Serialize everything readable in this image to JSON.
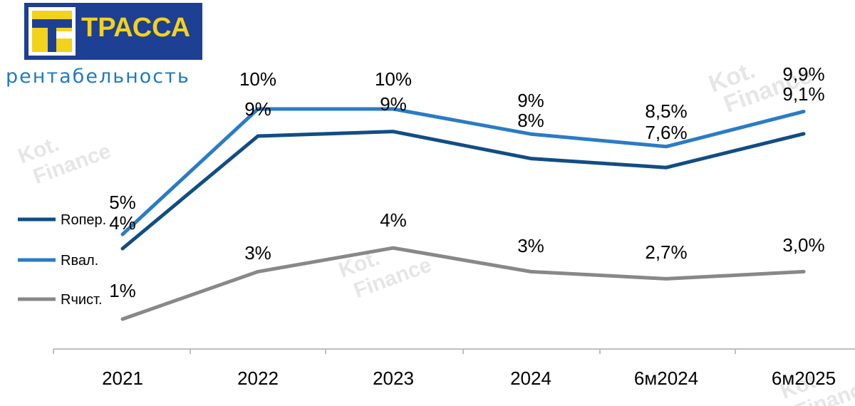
{
  "brand": {
    "name": "ТРАССА",
    "logo_bg": "#1d3f94",
    "logo_accent": "#f3d21b"
  },
  "subtitle": "рентабельность",
  "watermark": {
    "line1": "Kot.",
    "line2": "Finance"
  },
  "chart_data": {
    "type": "line",
    "categories": [
      "2021",
      "2022",
      "2023",
      "2024",
      "6м2024",
      "6м2025"
    ],
    "ylim": [
      0,
      12
    ],
    "grid": false,
    "legend_position": "left",
    "series": [
      {
        "name": "Rопер.",
        "color": "#124d84",
        "values": [
          4,
          9,
          9.2,
          8,
          7.6,
          9.1
        ],
        "labels": [
          "4%",
          "9%",
          "9%",
          "8%",
          "7,6%",
          "9,1%"
        ]
      },
      {
        "name": "Rвал.",
        "color": "#2a7cc4",
        "values": [
          5,
          10,
          10,
          9,
          8.5,
          9.9
        ],
        "labels": [
          "5%",
          "10%",
          "10%",
          "9%",
          "8,5%",
          "9,9%"
        ]
      },
      {
        "name": "Rчист.",
        "color": "#888888",
        "values": [
          1,
          3,
          4,
          3,
          2.7,
          3.0
        ],
        "labels": [
          "1%",
          "3%",
          "4%",
          "3%",
          "2,7%",
          "3,0%"
        ]
      }
    ]
  }
}
